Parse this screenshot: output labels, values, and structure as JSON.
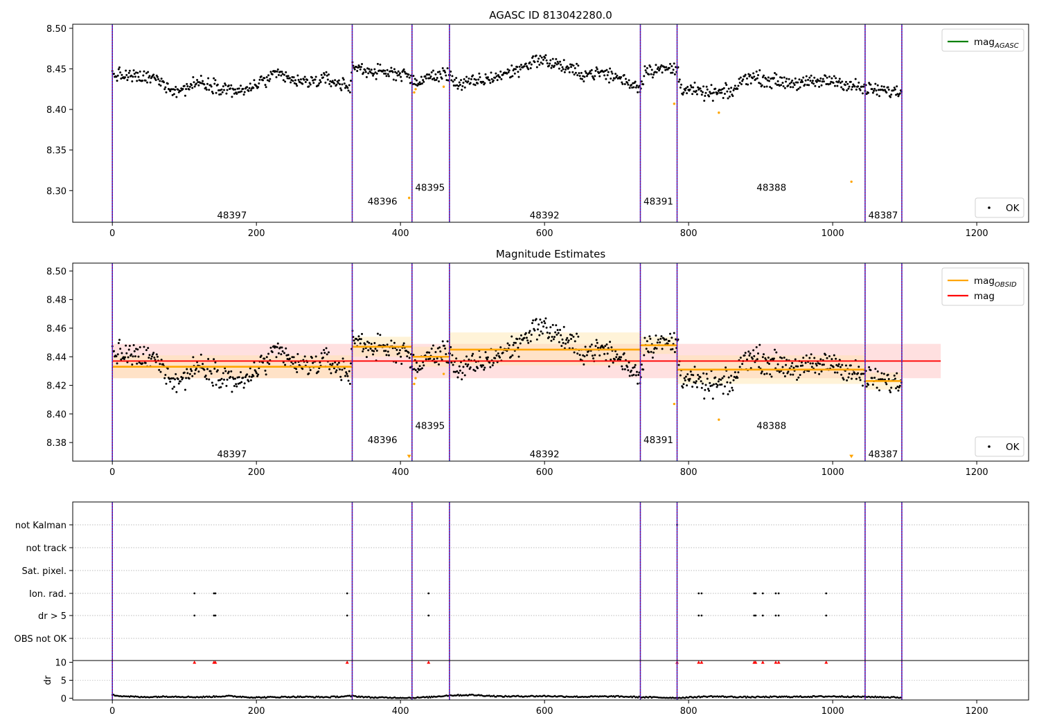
{
  "chart_data": [
    {
      "type": "scatter",
      "title": "AGASC ID 813042280.0",
      "xlim": [
        -55,
        1272
      ],
      "ylim": [
        8.261,
        8.505
      ],
      "xticks": [
        0,
        200,
        400,
        600,
        800,
        1000,
        1200
      ],
      "yticks": [
        8.3,
        8.35,
        8.4,
        8.45,
        8.5
      ],
      "ytick_labels": [
        "8.30",
        "8.35",
        "8.40",
        "8.45",
        "8.50"
      ],
      "legend_lines": [
        {
          "label": "mag_AGASC",
          "base": "mag",
          "sub": "AGASC",
          "color": "#008000"
        }
      ],
      "legend_points": [
        {
          "label": "OK",
          "color": "#000000"
        }
      ],
      "obsid_boundaries": [
        0,
        333,
        416,
        468,
        733,
        784,
        1045,
        1096
      ],
      "obsid_labels": [
        {
          "text": "48397",
          "x": 166,
          "y": 8.27
        },
        {
          "text": "48396",
          "x": 375,
          "y": 8.287
        },
        {
          "text": "48395",
          "x": 441,
          "y": 8.304
        },
        {
          "text": "48392",
          "x": 600,
          "y": 8.27
        },
        {
          "text": "48391",
          "x": 758,
          "y": 8.287
        },
        {
          "text": "48388",
          "x": 915,
          "y": 8.304
        },
        {
          "text": "48387",
          "x": 1070,
          "y": 8.27
        }
      ],
      "profile_points": [
        [
          0,
          8.443
        ],
        [
          30,
          8.44
        ],
        [
          60,
          8.438
        ],
        [
          90,
          8.422
        ],
        [
          120,
          8.434
        ],
        [
          150,
          8.428
        ],
        [
          180,
          8.421
        ],
        [
          200,
          8.431
        ],
        [
          230,
          8.443
        ],
        [
          260,
          8.433
        ],
        [
          300,
          8.437
        ],
        [
          330,
          8.427
        ],
        [
          333,
          8.453
        ],
        [
          370,
          8.445
        ],
        [
          410,
          8.445
        ],
        [
          416,
          8.431
        ],
        [
          440,
          8.44
        ],
        [
          468,
          8.444
        ],
        [
          480,
          8.43
        ],
        [
          520,
          8.437
        ],
        [
          560,
          8.448
        ],
        [
          590,
          8.462
        ],
        [
          620,
          8.455
        ],
        [
          650,
          8.444
        ],
        [
          680,
          8.445
        ],
        [
          700,
          8.44
        ],
        [
          733,
          8.427
        ],
        [
          740,
          8.449
        ],
        [
          784,
          8.45
        ],
        [
          790,
          8.427
        ],
        [
          820,
          8.42
        ],
        [
          860,
          8.421
        ],
        [
          880,
          8.441
        ],
        [
          920,
          8.435
        ],
        [
          960,
          8.432
        ],
        [
          1000,
          8.436
        ],
        [
          1045,
          8.425
        ],
        [
          1096,
          8.421
        ]
      ],
      "outliers": [
        {
          "x": 412,
          "y": 8.291
        },
        {
          "x": 419,
          "y": 8.421
        },
        {
          "x": 421,
          "y": 8.425
        },
        {
          "x": 460,
          "y": 8.428
        },
        {
          "x": 780,
          "y": 8.407
        },
        {
          "x": 842,
          "y": 8.396
        },
        {
          "x": 1026,
          "y": 8.311
        }
      ],
      "colors": {
        "ok": "#000000",
        "outlier": "#ffa500",
        "boundary": "#800080",
        "boundary_alt": "#3333cc"
      }
    },
    {
      "type": "scatter",
      "title": "Magnitude Estimates",
      "xlim": [
        -55,
        1272
      ],
      "ylim": [
        8.367,
        8.5055
      ],
      "xticks": [
        0,
        200,
        400,
        600,
        800,
        1000,
        1200
      ],
      "yticks": [
        8.38,
        8.4,
        8.42,
        8.44,
        8.46,
        8.48,
        8.5
      ],
      "ytick_labels": [
        "8.38",
        "8.40",
        "8.42",
        "8.44",
        "8.46",
        "8.48",
        "8.50"
      ],
      "legend_lines": [
        {
          "label": "mag_OBSID",
          "base": "mag",
          "sub": "OBSID",
          "color": "#ffa500"
        },
        {
          "label": "mag",
          "base": "mag",
          "sub": "",
          "color": "#ff0000"
        }
      ],
      "legend_points": [
        {
          "label": "OK",
          "color": "#000000"
        }
      ],
      "mag": {
        "value": 8.437,
        "band": [
          8.425,
          8.449
        ],
        "x_range": [
          0,
          1150
        ],
        "color": "#ff0000"
      },
      "obsid_segments": [
        {
          "x0": 0,
          "x1": 333,
          "mag": 8.433,
          "band": [
            8.425,
            8.441
          ]
        },
        {
          "x0": 333,
          "x1": 416,
          "mag": 8.447,
          "band": [
            8.44,
            8.454
          ]
        },
        {
          "x0": 416,
          "x1": 468,
          "mag": 8.44,
          "band": [
            8.433,
            8.447
          ]
        },
        {
          "x0": 468,
          "x1": 733,
          "mag": 8.445,
          "band": [
            8.434,
            8.457
          ]
        },
        {
          "x0": 733,
          "x1": 784,
          "mag": 8.448,
          "band": [
            8.442,
            8.454
          ]
        },
        {
          "x0": 784,
          "x1": 1045,
          "mag": 8.431,
          "band": [
            8.421,
            8.441
          ]
        },
        {
          "x0": 1045,
          "x1": 1096,
          "mag": 8.423,
          "band": [
            8.417,
            8.429
          ]
        }
      ],
      "obsid_labels": [
        {
          "text": "48397",
          "x": 166,
          "y": 8.372
        },
        {
          "text": "48396",
          "x": 375,
          "y": 8.382
        },
        {
          "text": "48395",
          "x": 441,
          "y": 8.392
        },
        {
          "text": "48392",
          "x": 600,
          "y": 8.372
        },
        {
          "text": "48391",
          "x": 758,
          "y": 8.382
        },
        {
          "text": "48388",
          "x": 915,
          "y": 8.392
        },
        {
          "text": "48387",
          "x": 1070,
          "y": 8.372
        }
      ],
      "outliers": [
        {
          "x": 412,
          "y": 8.37,
          "marker": "v"
        },
        {
          "x": 419,
          "y": 8.421
        },
        {
          "x": 421,
          "y": 8.425
        },
        {
          "x": 460,
          "y": 8.428
        },
        {
          "x": 780,
          "y": 8.407
        },
        {
          "x": 842,
          "y": 8.396
        },
        {
          "x": 1026,
          "y": 8.37,
          "marker": "v"
        }
      ]
    },
    {
      "type": "scatter",
      "title": "",
      "xlim": [
        -55,
        1272
      ],
      "xticks": [
        0,
        200,
        400,
        600,
        800,
        1000,
        1200
      ],
      "categories": [
        "not Kalman",
        "not track",
        "Sat. pixel.",
        "Ion. rad.",
        "dr > 5",
        "OBS not OK"
      ],
      "flag_points": {
        "not Kalman": [
          784
        ],
        "not track": [],
        "Sat. pixel.": [],
        "Ion. rad.": [
          114,
          141,
          143,
          326,
          439,
          814,
          818,
          891,
          893,
          903,
          921,
          925,
          991
        ],
        "dr > 5": [
          114,
          141,
          143,
          326,
          439,
          814,
          818,
          891,
          893,
          903,
          921,
          925,
          991
        ],
        "OBS not OK": []
      },
      "dr_panel": {
        "ylabel": "dr",
        "ylim": [
          -0.5,
          10.5
        ],
        "yticks": [
          0,
          5,
          10
        ],
        "ytick_labels": [
          "0",
          "5",
          "10"
        ],
        "clipped_at": 10,
        "high_dr_x": [
          114,
          141,
          143,
          326,
          439,
          784,
          814,
          818,
          891,
          893,
          903,
          921,
          925,
          991
        ],
        "baseline": [
          [
            0,
            0.9
          ],
          [
            15,
            0.6
          ],
          [
            40,
            0.3
          ],
          [
            80,
            0.5
          ],
          [
            120,
            0.3
          ],
          [
            160,
            0.6
          ],
          [
            200,
            0.2
          ],
          [
            250,
            0.4
          ],
          [
            300,
            0.3
          ],
          [
            333,
            0.6
          ],
          [
            360,
            0.2
          ],
          [
            416,
            0.1
          ],
          [
            440,
            0.3
          ],
          [
            468,
            0.8
          ],
          [
            500,
            0.9
          ],
          [
            540,
            0.5
          ],
          [
            600,
            0.6
          ],
          [
            650,
            0.4
          ],
          [
            700,
            0.5
          ],
          [
            733,
            0.3
          ],
          [
            784,
            0.1
          ],
          [
            830,
            0.5
          ],
          [
            880,
            0.3
          ],
          [
            940,
            0.4
          ],
          [
            1000,
            0.5
          ],
          [
            1045,
            0.4
          ],
          [
            1070,
            0.3
          ],
          [
            1096,
            0.2
          ]
        ]
      }
    }
  ]
}
